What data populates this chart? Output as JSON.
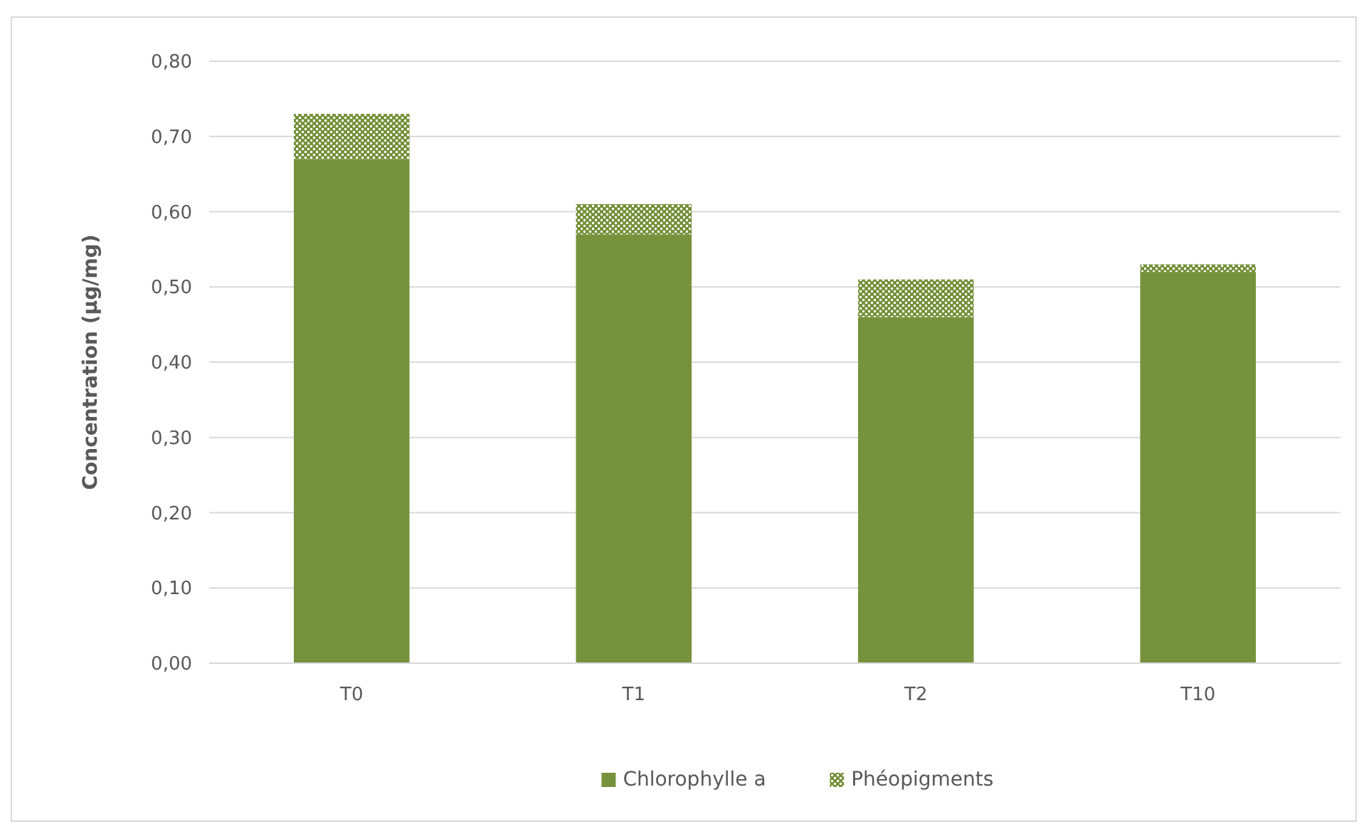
{
  "chart_data": {
    "type": "bar",
    "stacked": true,
    "ylabel": "Concentration (µg/mg)",
    "categories": [
      "T0",
      "T1",
      "T2",
      "T10"
    ],
    "series": [
      {
        "name": "Chlorophylle a",
        "color": "#76923c",
        "values": [
          0.67,
          0.57,
          0.46,
          0.52
        ]
      },
      {
        "name": "Phéopigments",
        "color": "#76923c",
        "values": [
          0.06,
          0.04,
          0.05,
          0.01
        ]
      }
    ],
    "ylim": [
      0,
      0.8
    ],
    "yticks": [
      {
        "value": 0,
        "label": "0,00"
      },
      {
        "value": 0.1,
        "label": "0,10"
      },
      {
        "value": 0.2,
        "label": "0,20"
      },
      {
        "value": 0.3,
        "label": "0,30"
      },
      {
        "value": 0.4,
        "label": "0,40"
      },
      {
        "value": 0.5,
        "label": "0,50"
      },
      {
        "value": 0.6,
        "label": "0,60"
      },
      {
        "value": 0.7,
        "label": "0,70"
      },
      {
        "value": 0.8,
        "label": "0,80"
      }
    ],
    "grid": "y",
    "legend": "bottom"
  }
}
